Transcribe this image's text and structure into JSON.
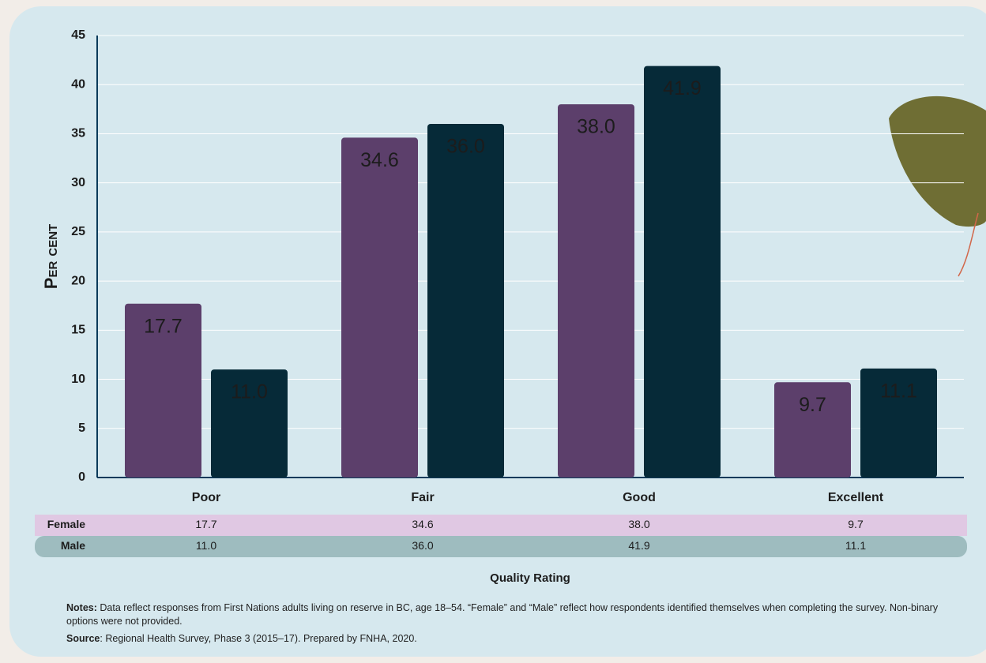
{
  "chart_data": {
    "type": "bar",
    "y_label": "Per cent",
    "x_label": "Quality Rating",
    "categories": [
      "Poor",
      "Fair",
      "Good",
      "Excellent"
    ],
    "series": [
      {
        "name": "Female",
        "color": "#5c3f6b",
        "row_color": "#e0c8e3",
        "values": [
          17.7,
          34.6,
          38,
          9.7
        ],
        "value_labels": [
          "17.7",
          "34.6",
          "38.0",
          "9.7"
        ]
      },
      {
        "name": "Male",
        "color": "#062a38",
        "row_color": "#9ebcbf",
        "values": [
          11,
          36,
          41.9,
          11.1
        ],
        "value_labels": [
          "11.0",
          "36.0",
          "41.9",
          "11.1"
        ]
      }
    ],
    "ylim": [
      0,
      45
    ],
    "yticks": [
      0,
      5,
      10,
      15,
      20,
      25,
      30,
      35,
      40,
      45
    ],
    "grid": true,
    "notes_label": "Notes:",
    "notes": "Data reflect responses from First Nations adults living on reserve in BC, age 18–54. “Female” and “Male” reflect how respondents identified themselves when completing the survey. Non-binary options were not provided.",
    "source_label": "Source",
    "source": ": Regional Health Survey, Phase 3 (2015–17). Prepared by FNHA, 2020."
  }
}
